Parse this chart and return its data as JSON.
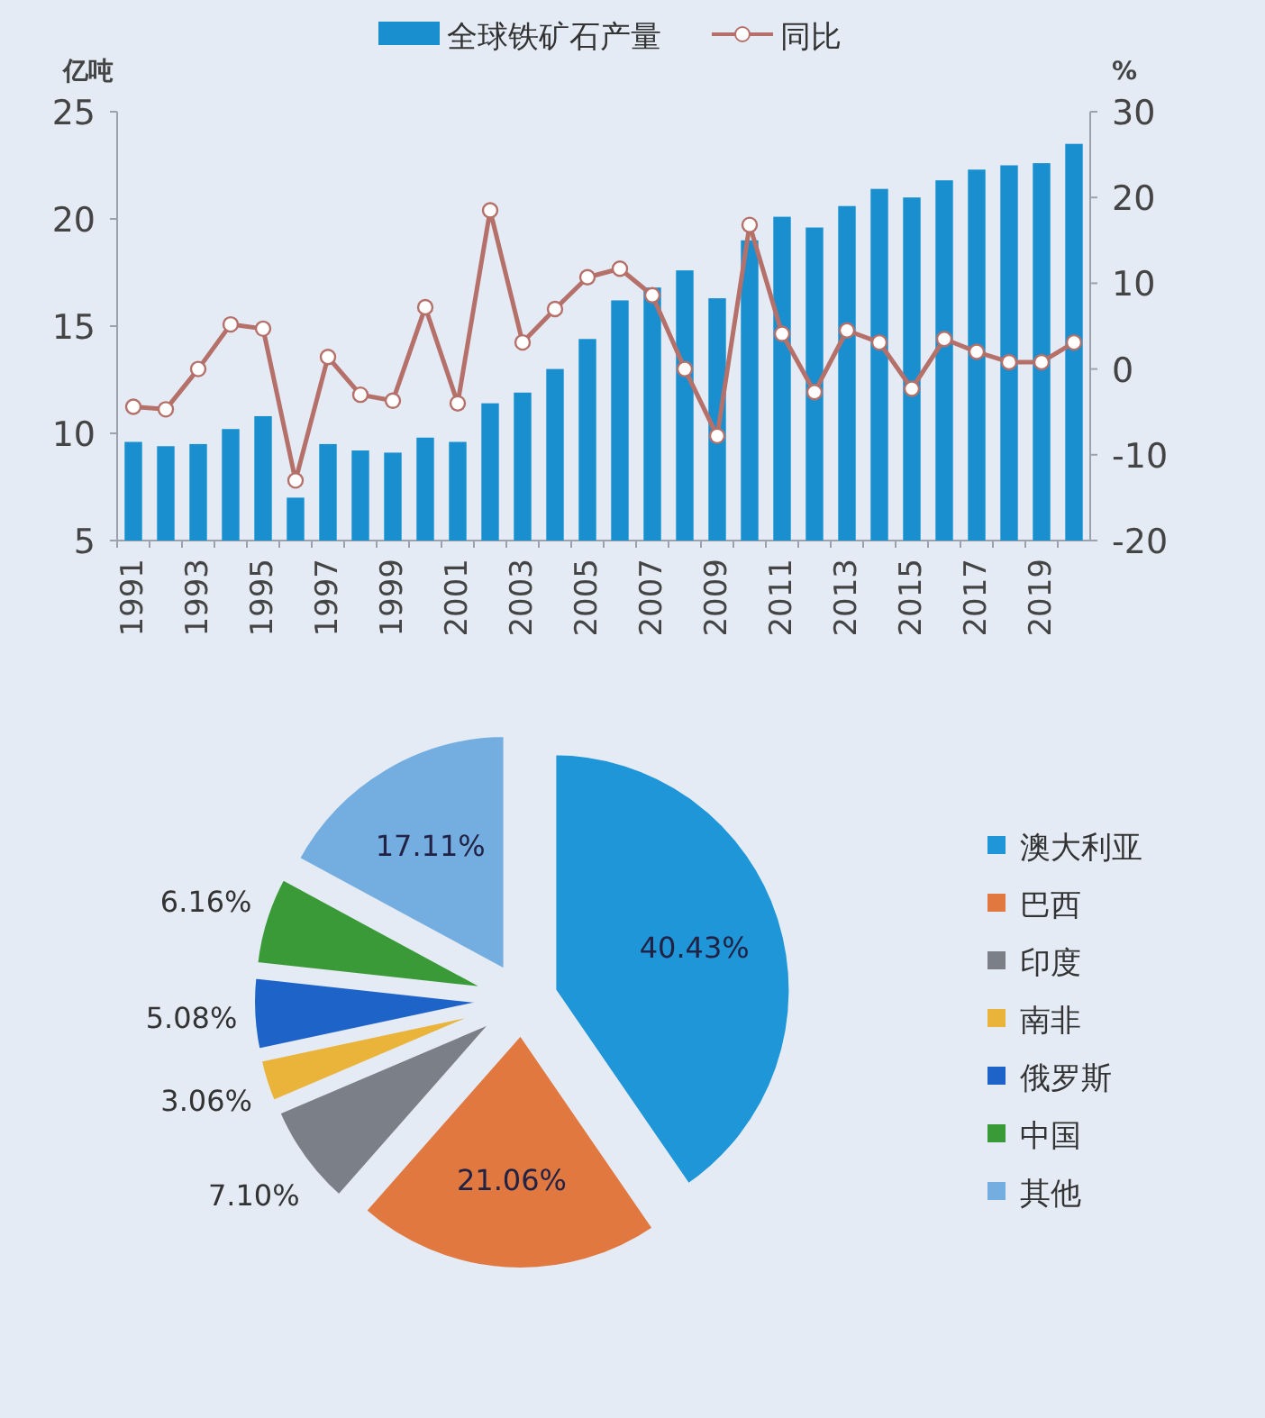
{
  "chart_data": [
    {
      "type": "bar",
      "ylabel": "亿吨",
      "y2label": "%",
      "legend": "top",
      "marker": "circle",
      "tick_labels": "xy",
      "categories": [
        "1991",
        null,
        "1993",
        null,
        "1995",
        null,
        "1997",
        null,
        "1999",
        null,
        "2001",
        null,
        "2003",
        null,
        "2005",
        null,
        "2007",
        null,
        "2009",
        null,
        "2011",
        null,
        "2013",
        null,
        "2015",
        null,
        "2017",
        null,
        "2019",
        null
      ],
      "ylim": [
        5,
        25
      ],
      "yticks": [
        5,
        10,
        15,
        20,
        25
      ],
      "y2lim": [
        -20,
        30
      ],
      "y2ticks": [
        -20,
        -10,
        0,
        10,
        20,
        30
      ],
      "series": [
        {
          "name": "全球铁矿石产量",
          "type": "bar",
          "color": "#1a8fd0",
          "values": [
            9.6,
            9.4,
            9.5,
            10.2,
            10.8,
            7.0,
            9.5,
            9.2,
            9.1,
            9.8,
            9.6,
            11.4,
            11.9,
            13.0,
            14.4,
            16.2,
            16.8,
            17.6,
            16.3,
            19.0,
            20.1,
            19.6,
            20.6,
            21.4,
            21.0,
            21.8,
            22.3,
            22.5,
            22.6,
            23.5
          ]
        },
        {
          "name": "同比",
          "type": "line",
          "axis": "y2",
          "color": "#b5706a",
          "values": [
            -4.4,
            -4.7,
            0,
            5.2,
            4.7,
            -13,
            1.4,
            -3.0,
            -3.7,
            7.2,
            -4.0,
            18.5,
            3.1,
            7.0,
            10.7,
            11.7,
            8.6,
            0,
            -7.8,
            16.8,
            4.1,
            -2.7,
            4.5,
            3.1,
            -2.3,
            3.5,
            2.0,
            0.8,
            0.8,
            3.1
          ]
        }
      ]
    },
    {
      "type": "pie",
      "legend": "right",
      "categories": [
        "澳大利亚",
        "巴西",
        "印度",
        "南非",
        "俄罗斯",
        "中国",
        "其他"
      ],
      "values": [
        40.43,
        21.06,
        7.1,
        3.06,
        5.08,
        6.16,
        17.11
      ],
      "value_labels": [
        "40.43%",
        "21.06%",
        "7.10%",
        "3.06%",
        "5.08%",
        "6.16%",
        "17.11%"
      ],
      "colors": [
        "#1e96d8",
        "#e07840",
        "#7a7f88",
        "#eab33a",
        "#1d63c8",
        "#3a9a38",
        "#74aee0"
      ]
    }
  ]
}
